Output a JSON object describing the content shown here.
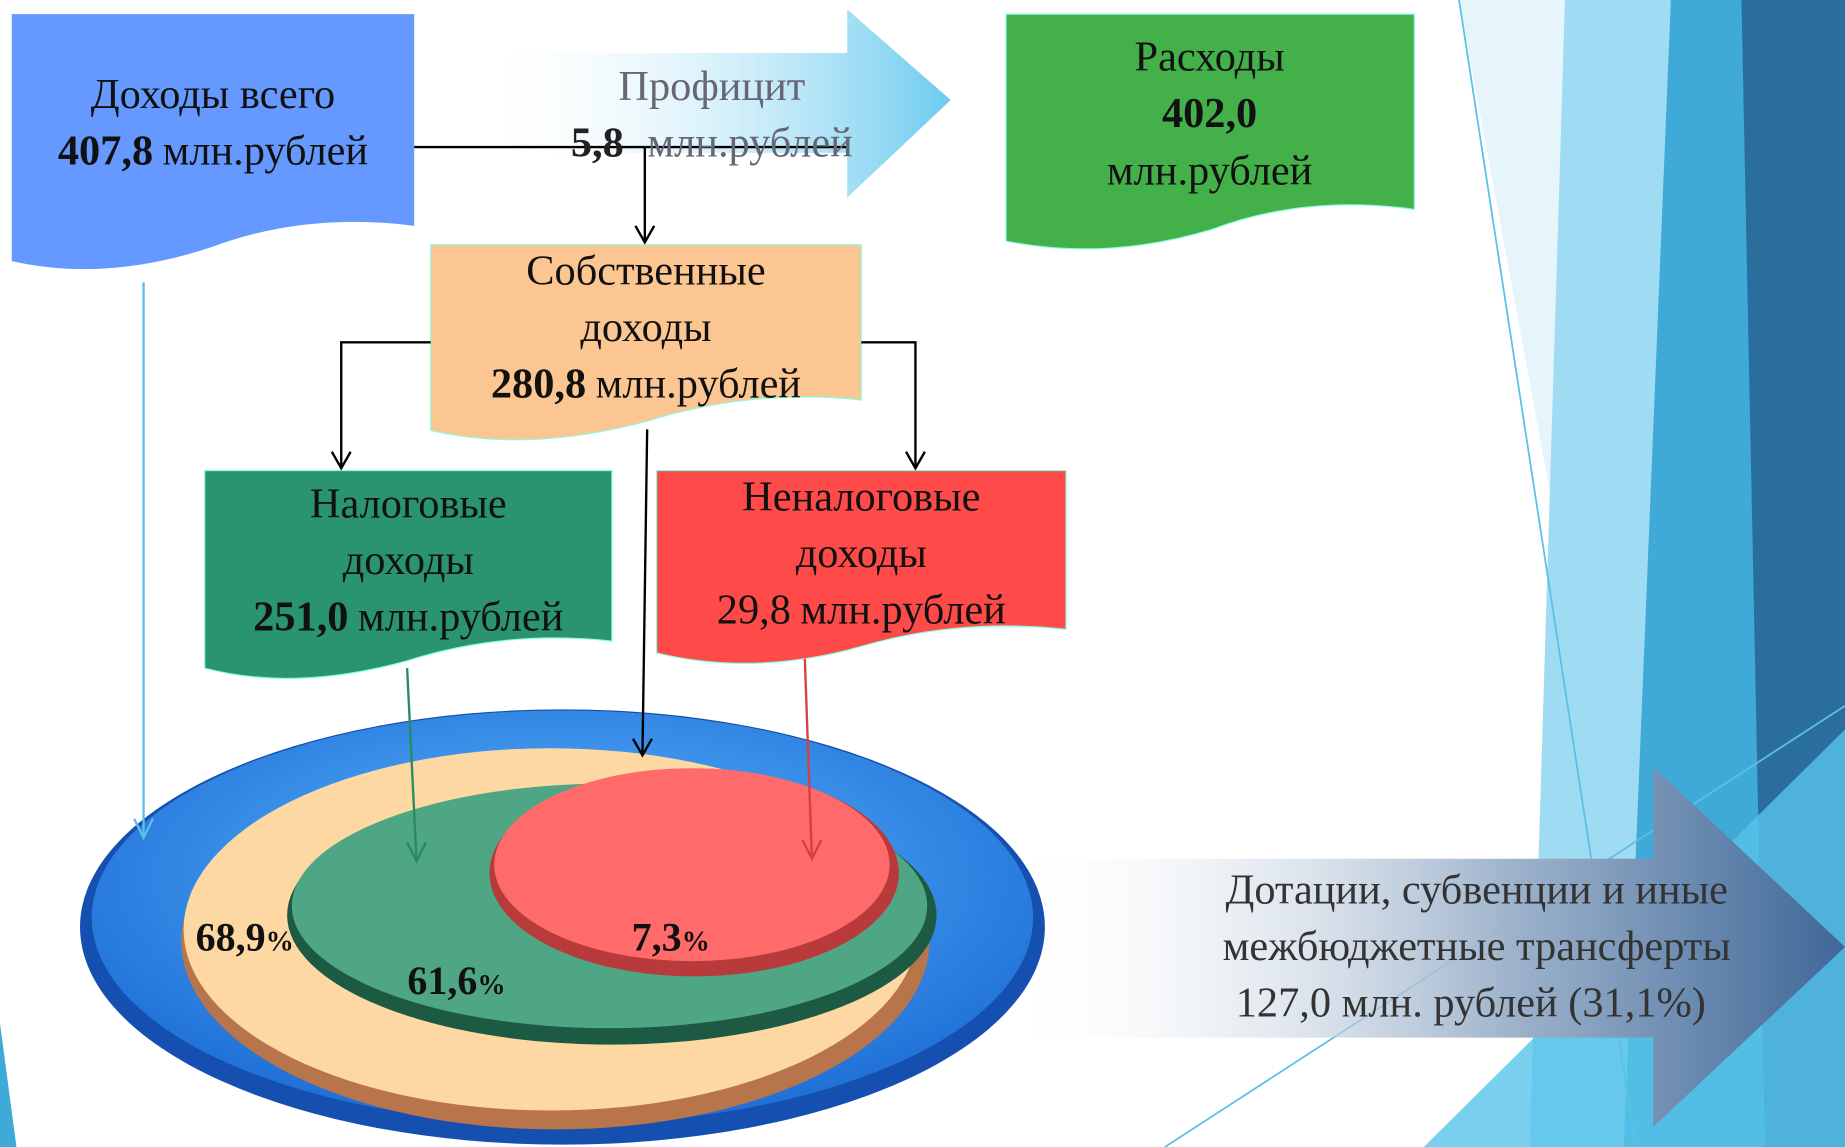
{
  "total": {
    "label": "Доходы всего",
    "amount": "407,8",
    "unit": "млн.рублей"
  },
  "surplus": {
    "label": "Профицит",
    "amount": "5,8",
    "unit": "млн.рублей"
  },
  "expenses": {
    "label": "Расходы",
    "amount": "402,0",
    "unit": "млн.рублей"
  },
  "own": {
    "lines": [
      "Собственные",
      "доходы"
    ],
    "amount": "280,8",
    "unit": "млн.рублей"
  },
  "tax": {
    "lines": [
      "Налоговые",
      "доходы"
    ],
    "amount": "251,0",
    "unit": "млн.рублей"
  },
  "nontax": {
    "lines": [
      "Неналоговые",
      "доходы"
    ],
    "amount": "29,8",
    "unit": "млн.рублей"
  },
  "transfers": {
    "lines": [
      "Дотации, субвенции и иные",
      "межбюджетные трансферты",
      "127,0 млн. рублей (31,1%)"
    ]
  },
  "shares": [
    {
      "value": "68,9",
      "unit": "%"
    },
    {
      "value": "61,6",
      "unit": "%"
    },
    {
      "value": "7,3",
      "unit": "%"
    }
  ]
}
